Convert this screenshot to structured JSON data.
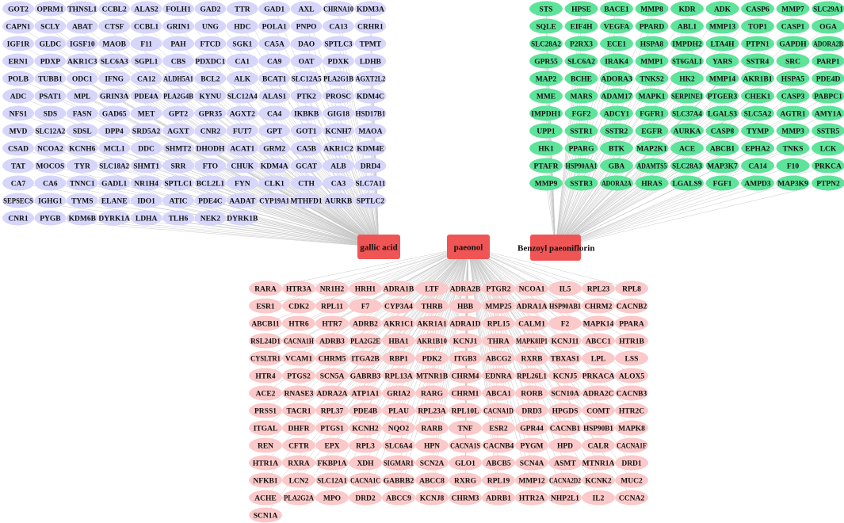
{
  "hubs": [
    {
      "key": "gallic",
      "label": "gallic acid",
      "color": "#f05555"
    },
    {
      "key": "paeonol",
      "label": "paeonol",
      "color": "#f05555"
    },
    {
      "key": "benzoyl",
      "label": "Benzoyl paeoniflorin",
      "color": "#f05555"
    }
  ],
  "groups": [
    {
      "key": "gallic_targets",
      "hub": "gallic",
      "node_color": "#d6d6fa",
      "rows": [
        [
          "GOT2",
          "OPRM1",
          "THNSL1",
          "CCBL2",
          "ALAS2",
          "FOLH1",
          "GAD2",
          "TTR",
          "GAD1",
          "AXL",
          "CHRNA10",
          "KDM3A"
        ],
        [
          "CAPN1",
          "SCLY",
          "ABAT",
          "CTSF",
          "CCBL1",
          "GRIN1",
          "UNG",
          "HDC",
          "POLA1",
          "PNPO",
          "CA13",
          "CRHR1"
        ],
        [
          "IGF1R",
          "GLDC",
          "IGSF10",
          "MAOB",
          "F11",
          "PAH",
          "FTCD",
          "SGK1",
          "CA5A",
          "DAO",
          "SPTLC3",
          "TPMT"
        ],
        [
          "ERN1",
          "PDXP",
          "AKR1C3",
          "SLC6A3",
          "SGPL1",
          "CBS",
          "PDXDC1",
          "CA1",
          "CA9",
          "OAT",
          "PDXK",
          "LDHB"
        ],
        [
          "POLB",
          "TUBB1",
          "ODC1",
          "IFNG",
          "CA12",
          "ALDH5A1",
          "BCL2",
          "ALK",
          "BCAT1",
          "SLC12A5",
          "PLA2G1B",
          "AGXT2L2"
        ],
        [
          "ADC",
          "PSAT1",
          "MPL",
          "GRIN3A",
          "PDE4A",
          "PLA2G4B",
          "KYNU",
          "SLC12A4",
          "ALAS1",
          "PTK2",
          "PROSC",
          "KDM4C"
        ],
        [
          "NFS1",
          "SDS",
          "FASN",
          "GAD65",
          "MET",
          "GPT2",
          "GPR35",
          "AGXT2",
          "CA4",
          "IKBKB",
          "GIG18",
          "HSD17B1"
        ],
        [
          "MVD",
          "SLC12A2",
          "SDSL",
          "DPP4",
          "SRD5A2",
          "AGXT",
          "CNR2",
          "FUT7",
          "GPT",
          "GOT1",
          "KCNH7",
          "MAOA"
        ],
        [
          "CSAD",
          "NCOA2",
          "KCNH6",
          "MCL1",
          "DDC",
          "SHMT2",
          "DHODH",
          "ACAT1",
          "GRM2",
          "CA5B",
          "AKR1C2",
          "KDM4E"
        ],
        [
          "TAT",
          "MOCOS",
          "TYR",
          "SLC18A2",
          "SHMT1",
          "SRR",
          "FTO",
          "CHUK",
          "KDM4A",
          "GCAT",
          "ALB",
          "DRD4"
        ],
        [
          "CA7",
          "CA6",
          "TNNC1",
          "GADL1",
          "NR1H4",
          "SPTLC1",
          "BCL2L1",
          "FYN",
          "CLK1",
          "CTH",
          "CA3",
          "SLC7A11"
        ],
        [
          "SEPSECS",
          "IGHG1",
          "TYMS",
          "ELANE",
          "IDO1",
          "ATIC",
          "PDE4C",
          "AADAT",
          "CYP19A1",
          "MTHFD1",
          "AURKB",
          "SPTLC2"
        ],
        [
          "CNR1",
          "PYGB",
          "KDM6B",
          "DYRK1A",
          "LDHA",
          "TLH6",
          "NEK2",
          "DYRK1B"
        ]
      ]
    },
    {
      "key": "benzoyl_targets",
      "hub": "benzoyl",
      "node_color": "#5ee39a",
      "rows": [
        [
          "STS",
          "HPSE",
          "BACE1",
          "MMP8",
          "KDR",
          "ADK",
          "CASP6",
          "MMP7",
          "SLC29A1"
        ],
        [
          "SQLE",
          "EIF4H",
          "VEGFA",
          "PPARD",
          "ABL1",
          "MMP13",
          "TOP1",
          "CASP1",
          "OGA"
        ],
        [
          "SLC28A2",
          "P2RX3",
          "ECE1",
          "HSPA8",
          "IMPDH2",
          "LTA4H",
          "PTPN1",
          "GAPDH",
          "ADORA2B"
        ],
        [
          "GPR55",
          "SLC6A2",
          "IRAK4",
          "MMP1",
          "ST6GAL1",
          "YARS",
          "SSTR4",
          "SRC",
          "PARP1"
        ],
        [
          "MAP2",
          "BCHE",
          "ADORA3",
          "TNKS2",
          "HK2",
          "MMP14",
          "AKR1B1",
          "HSPA5",
          "PDE4D"
        ],
        [
          "MME",
          "MARS",
          "ADAM17",
          "MAPK1",
          "SERPINE1",
          "PTGER3",
          "CHEK1",
          "CASP3",
          "PABPC1"
        ],
        [
          "IMPDH1",
          "FGF2",
          "ADCY1",
          "FGFR1",
          "SLC37A4",
          "LGALS3",
          "SLC5A2",
          "AGTR1",
          "AMY1A"
        ],
        [
          "UPP1",
          "SSTR1",
          "SSTR2",
          "EGFR",
          "AURKA",
          "CASP8",
          "TYMP",
          "MMP3",
          "SSTR5"
        ],
        [
          "HK1",
          "PPARG",
          "BTK",
          "MAP2K1",
          "ACE",
          "ABCB1",
          "EPHA2",
          "TNKS",
          "LCK"
        ],
        [
          "PTAFR",
          "HSP90AA1",
          "GBA",
          "ADAMTS5",
          "SLC28A3",
          "MAP3K7",
          "CA14",
          "F10",
          "PRKCA"
        ],
        [
          "MMP9",
          "SSTR3",
          "ADORA2A",
          "HRAS",
          "LGALS9",
          "FGF1",
          "AMPD3",
          "MAP3K9",
          "PTPN2"
        ]
      ]
    },
    {
      "key": "paeonol_targets",
      "hub": "paeonol",
      "node_color": "#fbc9c9",
      "rows": [
        [
          "RARA",
          "HTR3A",
          "NR1H2",
          "HRH1",
          "ADRA1B",
          "LTF",
          "ADRA2B",
          "PTGR2",
          "NCOA1",
          "IL5",
          "RPL23",
          "RPL8"
        ],
        [
          "ESR1",
          "CDK2",
          "RPL11",
          "F7",
          "CYP3A4",
          "THRB",
          "HBB",
          "MMP25",
          "ADRA1A",
          "HSP90AB1",
          "CHRM2",
          "CACNB2"
        ],
        [
          "ABCB11",
          "HTR6",
          "HTR7",
          "ADRB2",
          "AKR1C1",
          "AKR1A1",
          "ADRA1D",
          "RPL15",
          "CALM1",
          "F2",
          "MAPK14",
          "PPARA"
        ],
        [
          "RSL24D1",
          "CACNA1H",
          "ADRB3",
          "PLA2G2E",
          "HBA1",
          "AKR1B10",
          "KCNJ1",
          "THRA",
          "MAPK8IP1",
          "KCNJ11",
          "ABCC1",
          "HTR1B"
        ],
        [
          "CYSLTR1",
          "VCAM1",
          "CHRM5",
          "ITGA2B",
          "RBP1",
          "PDK2",
          "ITGB3",
          "ABCG2",
          "RXRB",
          "TBXAS1",
          "LPL",
          "LSS"
        ],
        [
          "HTR4",
          "PTGS2",
          "SCN5A",
          "GABRB3",
          "RPL13A",
          "MTNR1B",
          "CHRM4",
          "EDNRA",
          "RPL26L1",
          "KCNJ5",
          "PRKACA",
          "ALOX5"
        ],
        [
          "ACE2",
          "RNASE3",
          "ADRA2A",
          "ATP1A1",
          "GRIA2",
          "RARG",
          "CHRM1",
          "ABCA1",
          "RORB",
          "SCN10A",
          "ADRA2C",
          "CACNB3"
        ],
        [
          "PRSS1",
          "TACR1",
          "RPL37",
          "PDE4B",
          "PLAU",
          "RPL23A",
          "RPL10L",
          "CACNA1D",
          "DRD3",
          "HPGDS",
          "COMT",
          "HTR2C"
        ],
        [
          "ITGAL",
          "DHFR",
          "PTGS1",
          "KCNH2",
          "NQO2",
          "RARB",
          "TNF",
          "ESR2",
          "GPR44",
          "CACNB1",
          "HSP90B1",
          "MAPK8"
        ],
        [
          "REN",
          "CFTR",
          "EPX",
          "RPL3",
          "SLC6A4",
          "HPN",
          "CACNA1S",
          "CACNB4",
          "PYGM",
          "HPD",
          "CALR",
          "CACNA1F"
        ],
        [
          "HTR1A",
          "RXRA",
          "FKBP1A",
          "XDH",
          "SIGMAR1",
          "SCN2A",
          "GLO1",
          "ABCB5",
          "SCN4A",
          "ASMT",
          "MTNR1A",
          "DRD1"
        ],
        [
          "NFKB1",
          "LCN2",
          "SLC12A1",
          "CACNA1C",
          "GABRB2",
          "ABCC8",
          "RXRG",
          "RPL19",
          "MMP12",
          "CACNA2D2",
          "KCNK2",
          "MUC2"
        ],
        [
          "ACHE",
          "PLA2G2A",
          "MPO",
          "DRD2",
          "ABCC9",
          "KCNJ8",
          "CHRM3",
          "ADRB1",
          "HTR2A",
          "NHP2L1",
          "IL2",
          "CCNA2"
        ],
        [
          "SCN1A"
        ]
      ]
    }
  ]
}
